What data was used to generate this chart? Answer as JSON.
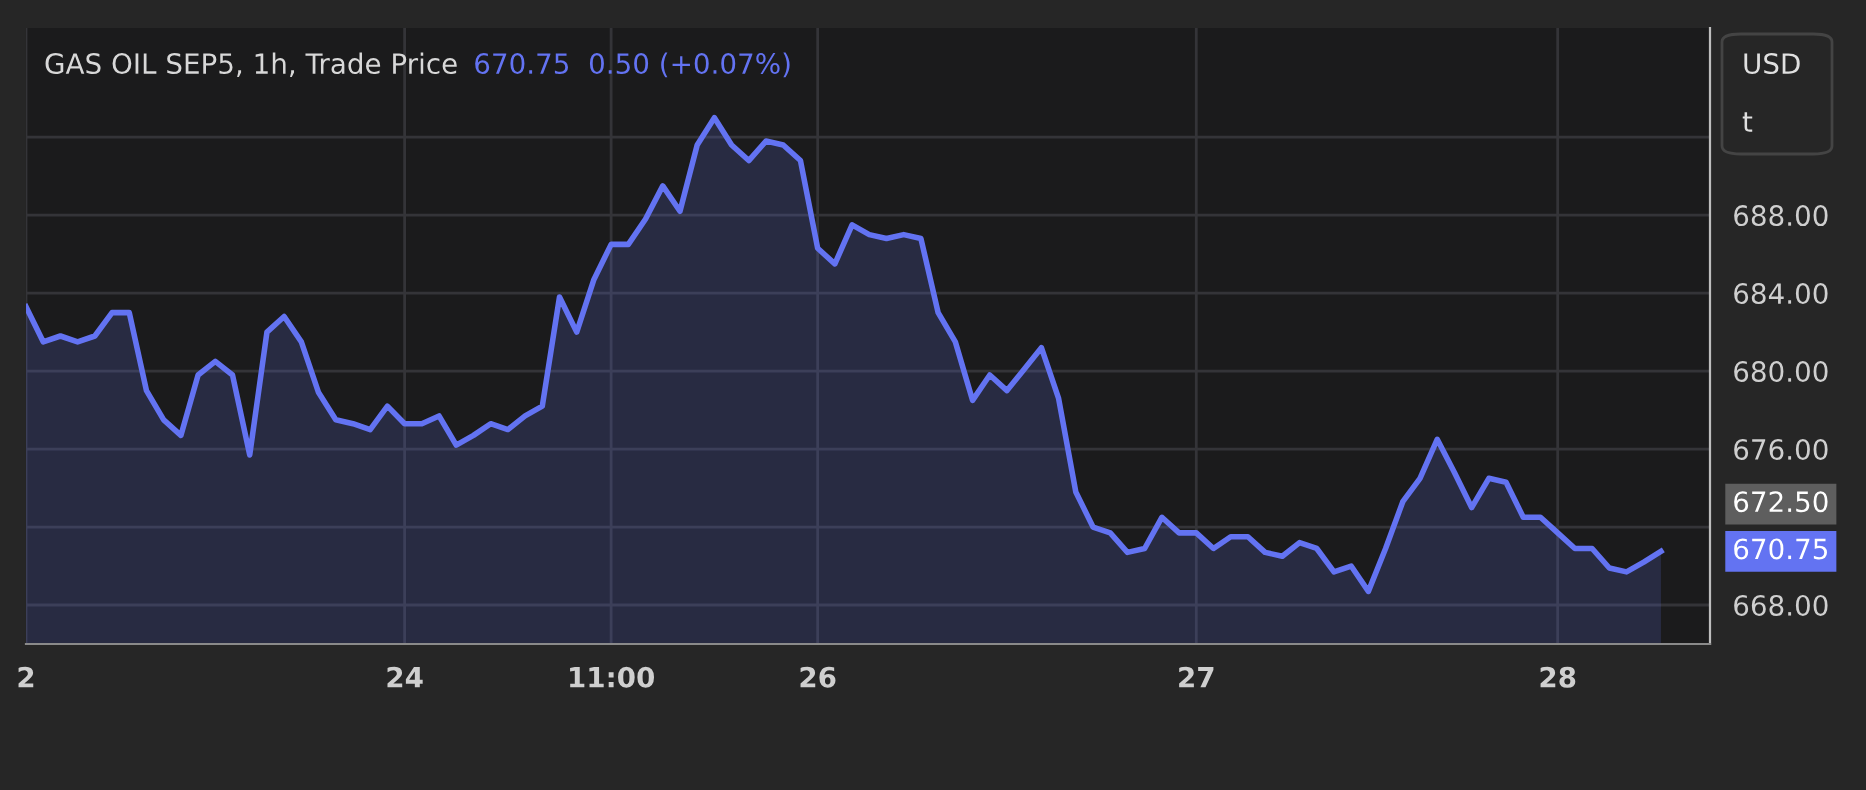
{
  "chart_data": {
    "type": "area",
    "title": "GAS OIL SEP5, 1h, Trade Price",
    "subtitle": "670.75  0.50 (+0.07%)",
    "annotations": [
      "USD",
      "t",
      "672.50",
      "670.75"
    ],
    "categories": [
      "2",
      null,
      null,
      null,
      null,
      null,
      null,
      null,
      null,
      null,
      null,
      null,
      null,
      null,
      null,
      null,
      null,
      null,
      null,
      null,
      null,
      null,
      "24",
      null,
      null,
      null,
      null,
      null,
      null,
      null,
      null,
      null,
      null,
      null,
      "11:00",
      null,
      null,
      null,
      null,
      null,
      null,
      null,
      null,
      null,
      null,
      null,
      "26",
      null,
      null,
      null,
      null,
      null,
      null,
      null,
      null,
      null,
      null,
      null,
      null,
      null,
      null,
      null,
      null,
      null,
      null,
      null,
      null,
      null,
      "27",
      null,
      null,
      null,
      null,
      null,
      null,
      null,
      null,
      null,
      null,
      null,
      null,
      null,
      null,
      null,
      null,
      null,
      null,
      null,
      null,
      "28",
      null,
      null,
      null,
      null,
      null,
      null
    ],
    "series": [
      {
        "color": "#6373f2",
        "values": [
          683.3,
          681.5,
          681.8,
          681.5,
          681.8,
          683.0,
          683.0,
          679.0,
          677.5,
          676.7,
          679.8,
          680.5,
          679.8,
          675.7,
          682.0,
          682.8,
          681.5,
          678.9,
          677.5,
          677.3,
          677.0,
          678.2,
          677.3,
          677.3,
          677.7,
          676.2,
          676.7,
          677.3,
          677.0,
          677.7,
          678.2,
          683.8,
          682.0,
          684.7,
          686.5,
          686.5,
          687.8,
          689.5,
          688.2,
          691.6,
          693.0,
          691.6,
          690.8,
          691.8,
          691.6,
          690.8,
          686.3,
          685.5,
          687.5,
          687.0,
          686.8,
          687.0,
          686.8,
          683.0,
          681.5,
          678.5,
          679.8,
          679.0,
          680.1,
          681.2,
          678.6,
          673.8,
          672.0,
          671.7,
          670.7,
          670.9,
          672.5,
          671.7,
          671.7,
          670.9,
          671.5,
          671.5,
          670.7,
          670.5,
          671.2,
          670.9,
          669.7,
          670.0,
          668.7,
          670.9,
          673.3,
          674.5,
          676.5,
          674.8,
          673.0,
          674.5,
          674.3,
          672.5,
          672.5,
          671.7,
          670.9,
          670.9,
          669.9,
          669.7,
          670.2,
          670.75
        ]
      }
    ],
    "ylim": [
      666,
      697.6
    ],
    "yticks": [
      {
        "value": 668,
        "label": "668.00"
      },
      {
        "value": 672,
        "label": null
      },
      {
        "value": 676,
        "label": "676.00"
      },
      {
        "value": 680,
        "label": "680.00"
      },
      {
        "value": 684,
        "label": "684.00"
      },
      {
        "value": 688,
        "label": "688.00"
      },
      {
        "value": 692,
        "label": null
      }
    ],
    "grid": true
  }
}
